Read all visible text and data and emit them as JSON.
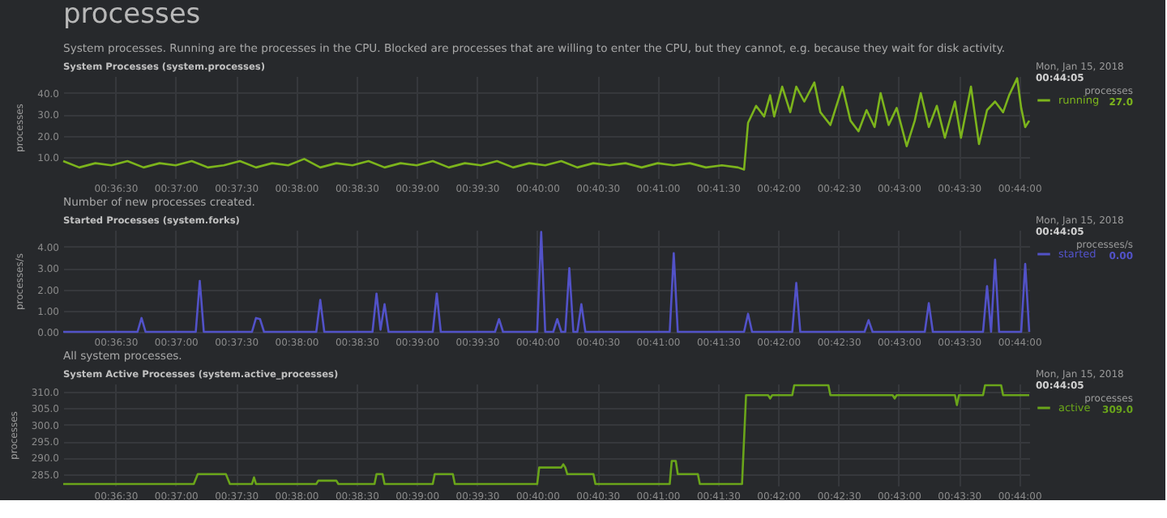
{
  "chart_data": [
    {
      "type": "line",
      "title": "System Processes (system.processes)",
      "subtitle": "System processes. Running are the processes in the CPU. Blocked are processes that are willing to enter the CPU, but they cannot, e.g. because they wait for disk activity.",
      "ylabel": "processes",
      "annotations": [
        "processes",
        "Mon, Jan 15, 2018",
        "00:44:05",
        "processes",
        "27.0"
      ],
      "x": [
        "2018-01-15T00:36:04",
        "2018-01-15T00:36:12",
        "2018-01-15T00:36:20",
        "2018-01-15T00:36:28",
        "2018-01-15T00:36:36",
        "2018-01-15T00:36:44",
        "2018-01-15T00:36:52",
        "2018-01-15T00:37:00",
        "2018-01-15T00:37:08",
        "2018-01-15T00:37:16",
        "2018-01-15T00:37:24",
        "2018-01-15T00:37:32",
        "2018-01-15T00:37:40",
        "2018-01-15T00:37:48",
        "2018-01-15T00:37:56",
        "2018-01-15T00:38:04",
        "2018-01-15T00:38:12",
        "2018-01-15T00:38:20",
        "2018-01-15T00:38:28",
        "2018-01-15T00:38:36",
        "2018-01-15T00:38:44",
        "2018-01-15T00:38:52",
        "2018-01-15T00:39:00",
        "2018-01-15T00:39:08",
        "2018-01-15T00:39:16",
        "2018-01-15T00:39:24",
        "2018-01-15T00:39:32",
        "2018-01-15T00:39:40",
        "2018-01-15T00:39:48",
        "2018-01-15T00:39:56",
        "2018-01-15T00:40:04",
        "2018-01-15T00:40:12",
        "2018-01-15T00:40:20",
        "2018-01-15T00:40:28",
        "2018-01-15T00:40:36",
        "2018-01-15T00:40:44",
        "2018-01-15T00:40:52",
        "2018-01-15T00:41:00",
        "2018-01-15T00:41:08",
        "2018-01-15T00:41:16",
        "2018-01-15T00:41:24",
        "2018-01-15T00:41:32",
        "2018-01-15T00:41:40",
        "2018-01-15T00:41:43",
        "2018-01-15T00:41:45",
        "2018-01-15T00:41:49",
        "2018-01-15T00:41:53",
        "2018-01-15T00:41:56",
        "2018-01-15T00:41:58",
        "2018-01-15T00:42:02",
        "2018-01-15T00:42:06",
        "2018-01-15T00:42:09",
        "2018-01-15T00:42:13",
        "2018-01-15T00:42:18",
        "2018-01-15T00:42:21",
        "2018-01-15T00:42:26",
        "2018-01-15T00:42:32",
        "2018-01-15T00:42:36",
        "2018-01-15T00:42:40",
        "2018-01-15T00:42:44",
        "2018-01-15T00:42:48",
        "2018-01-15T00:42:51",
        "2018-01-15T00:42:55",
        "2018-01-15T00:42:59",
        "2018-01-15T00:43:04",
        "2018-01-15T00:43:08",
        "2018-01-15T00:43:11",
        "2018-01-15T00:43:15",
        "2018-01-15T00:43:19",
        "2018-01-15T00:43:23",
        "2018-01-15T00:43:28",
        "2018-01-15T00:43:31",
        "2018-01-15T00:43:36",
        "2018-01-15T00:43:40",
        "2018-01-15T00:43:44",
        "2018-01-15T00:43:48",
        "2018-01-15T00:43:52",
        "2018-01-15T00:43:55",
        "2018-01-15T00:43:59",
        "2018-01-15T00:44:01",
        "2018-01-15T00:44:03",
        "2018-01-15T00:44:05"
      ],
      "series": [
        {
          "name": "running",
          "color": "#7cb41c",
          "values": [
            8,
            5,
            7,
            6,
            8,
            5,
            7,
            6,
            8,
            5,
            6,
            8,
            5,
            7,
            6,
            9,
            5,
            7,
            6,
            8,
            5,
            7,
            6,
            8,
            5,
            7,
            6,
            8,
            5,
            7,
            6,
            8,
            5,
            7,
            6,
            7,
            5,
            7,
            6,
            7,
            5,
            6,
            5,
            4,
            26,
            34,
            29,
            39,
            29,
            43,
            31,
            43,
            36,
            45,
            31,
            25,
            43,
            27,
            22,
            32,
            24,
            40,
            25,
            33,
            15,
            27,
            40,
            24,
            34,
            19,
            36,
            19,
            43,
            16,
            32,
            36,
            31,
            39,
            47,
            33,
            24,
            27
          ]
        }
      ],
      "xlim": [
        "2018-01-15T00:36:04",
        "2018-01-15T00:44:05"
      ],
      "xticks": [
        {
          "value": "2018-01-15T00:36:30",
          "label": "00:36:30"
        },
        {
          "value": "2018-01-15T00:37:00",
          "label": "00:37:00"
        },
        {
          "value": "2018-01-15T00:37:30",
          "label": "00:37:30"
        },
        {
          "value": "2018-01-15T00:38:00",
          "label": "00:38:00"
        },
        {
          "value": "2018-01-15T00:38:30",
          "label": "00:38:30"
        },
        {
          "value": "2018-01-15T00:39:00",
          "label": "00:39:00"
        },
        {
          "value": "2018-01-15T00:39:30",
          "label": "00:39:30"
        },
        {
          "value": "2018-01-15T00:40:00",
          "label": "00:40:00"
        },
        {
          "value": "2018-01-15T00:40:30",
          "label": "00:40:30"
        },
        {
          "value": "2018-01-15T00:41:00",
          "label": "00:41:00"
        },
        {
          "value": "2018-01-15T00:41:30",
          "label": "00:41:30"
        },
        {
          "value": "2018-01-15T00:42:00",
          "label": "00:42:00"
        },
        {
          "value": "2018-01-15T00:42:30",
          "label": "00:42:30"
        },
        {
          "value": "2018-01-15T00:43:00",
          "label": "00:43:00"
        },
        {
          "value": "2018-01-15T00:43:30",
          "label": "00:43:30"
        },
        {
          "value": "2018-01-15T00:44:00",
          "label": "00:44:00"
        }
      ],
      "ylim": [
        0,
        48
      ],
      "yticks": [
        {
          "value": 10,
          "label": "10.0"
        },
        {
          "value": 20,
          "label": "20.0"
        },
        {
          "value": 30,
          "label": "30.0"
        },
        {
          "value": 40,
          "label": "40.0"
        }
      ],
      "grid": true,
      "legend": "right",
      "marker": "none",
      "line_style": "solid"
    },
    {
      "type": "line",
      "title": "Started Processes (system.forks)",
      "subtitle": "Number of new processes created.",
      "ylabel": "processes/s",
      "annotations": [
        "Mon, Jan 15, 2018",
        "00:44:05",
        "processes/s",
        "0.00"
      ],
      "x": [
        "2018-01-15T00:36:04",
        "2018-01-15T00:36:41",
        "2018-01-15T00:36:43",
        "2018-01-15T00:36:45",
        "2018-01-15T00:37:10",
        "2018-01-15T00:37:12",
        "2018-01-15T00:37:14",
        "2018-01-15T00:37:38",
        "2018-01-15T00:37:40",
        "2018-01-15T00:37:42",
        "2018-01-15T00:37:44",
        "2018-01-15T00:38:10",
        "2018-01-15T00:38:12",
        "2018-01-15T00:38:14",
        "2018-01-15T00:38:38",
        "2018-01-15T00:38:40",
        "2018-01-15T00:38:42",
        "2018-01-15T00:38:44",
        "2018-01-15T00:38:46",
        "2018-01-15T00:39:08",
        "2018-01-15T00:39:10",
        "2018-01-15T00:39:12",
        "2018-01-15T00:39:39",
        "2018-01-15T00:39:41",
        "2018-01-15T00:39:43",
        "2018-01-15T00:40:00",
        "2018-01-15T00:40:02",
        "2018-01-15T00:40:04",
        "2018-01-15T00:40:08",
        "2018-01-15T00:40:10",
        "2018-01-15T00:40:12",
        "2018-01-15T00:40:14",
        "2018-01-15T00:40:16",
        "2018-01-15T00:40:18",
        "2018-01-15T00:40:20",
        "2018-01-15T00:40:22",
        "2018-01-15T00:40:24",
        "2018-01-15T00:41:06",
        "2018-01-15T00:41:08",
        "2018-01-15T00:41:10",
        "2018-01-15T00:41:43",
        "2018-01-15T00:41:45",
        "2018-01-15T00:41:47",
        "2018-01-15T00:42:07",
        "2018-01-15T00:42:09",
        "2018-01-15T00:42:11",
        "2018-01-15T00:42:43",
        "2018-01-15T00:42:45",
        "2018-01-15T00:42:47",
        "2018-01-15T00:43:13",
        "2018-01-15T00:43:15",
        "2018-01-15T00:43:17",
        "2018-01-15T00:43:42",
        "2018-01-15T00:43:44",
        "2018-01-15T00:43:46",
        "2018-01-15T00:43:48",
        "2018-01-15T00:43:50",
        "2018-01-15T00:44:01",
        "2018-01-15T00:44:03",
        "2018-01-15T00:44:05"
      ],
      "series": [
        {
          "name": "started",
          "color": "#5252c8",
          "values": [
            0,
            0,
            0.65,
            0,
            0,
            2.4,
            0,
            0,
            0.65,
            0.6,
            0,
            0,
            1.5,
            0,
            0,
            1.8,
            0.1,
            1.3,
            0,
            0,
            1.8,
            0,
            0,
            0.6,
            0,
            0,
            4.7,
            0,
            0,
            0.6,
            0,
            0,
            3.0,
            0,
            0,
            1.3,
            0,
            0,
            3.7,
            0,
            0,
            0.85,
            0,
            0,
            2.3,
            0,
            0,
            0.55,
            0,
            0,
            1.35,
            0,
            0,
            2.15,
            0,
            3.4,
            0,
            0,
            3.2,
            0
          ]
        }
      ],
      "xlim": [
        "2018-01-15T00:36:04",
        "2018-01-15T00:44:05"
      ],
      "xticks": [
        {
          "value": "2018-01-15T00:36:30",
          "label": "00:36:30"
        },
        {
          "value": "2018-01-15T00:37:00",
          "label": "00:37:00"
        },
        {
          "value": "2018-01-15T00:37:30",
          "label": "00:37:30"
        },
        {
          "value": "2018-01-15T00:38:00",
          "label": "00:38:00"
        },
        {
          "value": "2018-01-15T00:38:30",
          "label": "00:38:30"
        },
        {
          "value": "2018-01-15T00:39:00",
          "label": "00:39:00"
        },
        {
          "value": "2018-01-15T00:39:30",
          "label": "00:39:30"
        },
        {
          "value": "2018-01-15T00:40:00",
          "label": "00:40:00"
        },
        {
          "value": "2018-01-15T00:40:30",
          "label": "00:40:30"
        },
        {
          "value": "2018-01-15T00:41:00",
          "label": "00:41:00"
        },
        {
          "value": "2018-01-15T00:41:30",
          "label": "00:41:30"
        },
        {
          "value": "2018-01-15T00:42:00",
          "label": "00:42:00"
        },
        {
          "value": "2018-01-15T00:42:30",
          "label": "00:42:30"
        },
        {
          "value": "2018-01-15T00:43:00",
          "label": "00:43:00"
        },
        {
          "value": "2018-01-15T00:43:30",
          "label": "00:43:30"
        },
        {
          "value": "2018-01-15T00:44:00",
          "label": "00:44:00"
        }
      ],
      "ylim": [
        0,
        4.8
      ],
      "yticks": [
        {
          "value": 0,
          "label": "0.00"
        },
        {
          "value": 1,
          "label": "1.00"
        },
        {
          "value": 2,
          "label": "2.00"
        },
        {
          "value": 3,
          "label": "3.00"
        },
        {
          "value": 4,
          "label": "4.00"
        }
      ],
      "grid": true,
      "legend": "right",
      "marker": "none",
      "line_style": "solid"
    },
    {
      "type": "line",
      "title": "System Active Processes (system.active_processes)",
      "subtitle": "All system processes.",
      "ylabel": "processes",
      "annotations": [
        "Mon, Jan 15, 2018",
        "00:44:05",
        "processes",
        "309.0"
      ],
      "x": [
        "2018-01-15T00:36:04",
        "2018-01-15T00:37:09",
        "2018-01-15T00:37:11",
        "2018-01-15T00:37:25",
        "2018-01-15T00:37:27",
        "2018-01-15T00:37:38",
        "2018-01-15T00:37:39",
        "2018-01-15T00:37:40",
        "2018-01-15T00:38:10",
        "2018-01-15T00:38:11",
        "2018-01-15T00:38:20",
        "2018-01-15T00:38:21",
        "2018-01-15T00:38:39",
        "2018-01-15T00:38:40",
        "2018-01-15T00:38:43",
        "2018-01-15T00:38:44",
        "2018-01-15T00:39:08",
        "2018-01-15T00:39:09",
        "2018-01-15T00:39:18",
        "2018-01-15T00:39:19",
        "2018-01-15T00:40:00",
        "2018-01-15T00:40:01",
        "2018-01-15T00:40:12",
        "2018-01-15T00:40:13",
        "2018-01-15T00:40:14",
        "2018-01-15T00:40:15",
        "2018-01-15T00:40:28",
        "2018-01-15T00:40:29",
        "2018-01-15T00:41:06",
        "2018-01-15T00:41:07",
        "2018-01-15T00:41:09",
        "2018-01-15T00:41:10",
        "2018-01-15T00:41:20",
        "2018-01-15T00:41:21",
        "2018-01-15T00:41:42",
        "2018-01-15T00:41:44",
        "2018-01-15T00:41:55",
        "2018-01-15T00:41:56",
        "2018-01-15T00:41:57",
        "2018-01-15T00:42:07",
        "2018-01-15T00:42:08",
        "2018-01-15T00:42:25",
        "2018-01-15T00:42:26",
        "2018-01-15T00:42:57",
        "2018-01-15T00:42:58",
        "2018-01-15T00:42:59",
        "2018-01-15T00:43:28",
        "2018-01-15T00:43:29",
        "2018-01-15T00:43:30",
        "2018-01-15T00:43:42",
        "2018-01-15T00:43:43",
        "2018-01-15T00:43:51",
        "2018-01-15T00:43:52",
        "2018-01-15T00:44:05"
      ],
      "series": [
        {
          "name": "active",
          "color": "#6aa51a",
          "values": [
            282,
            282,
            285,
            285,
            282,
            282,
            284,
            282,
            282,
            283,
            283,
            282,
            282,
            285,
            285,
            282,
            282,
            285,
            285,
            282,
            282,
            287,
            287,
            288,
            287,
            285,
            285,
            282,
            282,
            289,
            289,
            285,
            285,
            282,
            282,
            309,
            309,
            308,
            309,
            309,
            312,
            312,
            309,
            309,
            308,
            309,
            309,
            306,
            309,
            309,
            312,
            312,
            309,
            309
          ]
        }
      ],
      "xlim": [
        "2018-01-15T00:36:04",
        "2018-01-15T00:44:05"
      ],
      "xticks": [
        {
          "value": "2018-01-15T00:36:30",
          "label": "00:36:30"
        },
        {
          "value": "2018-01-15T00:37:00",
          "label": "00:37:00"
        },
        {
          "value": "2018-01-15T00:37:30",
          "label": "00:37:30"
        },
        {
          "value": "2018-01-15T00:38:00",
          "label": "00:38:00"
        },
        {
          "value": "2018-01-15T00:38:30",
          "label": "00:38:30"
        },
        {
          "value": "2018-01-15T00:39:00",
          "label": "00:39:00"
        },
        {
          "value": "2018-01-15T00:39:30",
          "label": "00:39:30"
        },
        {
          "value": "2018-01-15T00:40:00",
          "label": "00:40:00"
        },
        {
          "value": "2018-01-15T00:40:30",
          "label": "00:40:30"
        },
        {
          "value": "2018-01-15T00:41:00",
          "label": "00:41:00"
        },
        {
          "value": "2018-01-15T00:41:30",
          "label": "00:41:30"
        },
        {
          "value": "2018-01-15T00:42:00",
          "label": "00:42:00"
        },
        {
          "value": "2018-01-15T00:42:30",
          "label": "00:42:30"
        },
        {
          "value": "2018-01-15T00:43:00",
          "label": "00:43:00"
        },
        {
          "value": "2018-01-15T00:43:30",
          "label": "00:43:30"
        },
        {
          "value": "2018-01-15T00:44:00",
          "label": "00:44:00"
        }
      ],
      "ylim": [
        281.5,
        312.5
      ],
      "yticks": [
        {
          "value": 285,
          "label": "285.0"
        },
        {
          "value": 290,
          "label": "290.0"
        },
        {
          "value": 295,
          "label": "295.0"
        },
        {
          "value": 300,
          "label": "300.0"
        },
        {
          "value": 305,
          "label": "305.0"
        },
        {
          "value": 310,
          "label": "310.0"
        }
      ],
      "grid": true,
      "legend": "right",
      "marker": "none",
      "line_style": "solid"
    }
  ]
}
